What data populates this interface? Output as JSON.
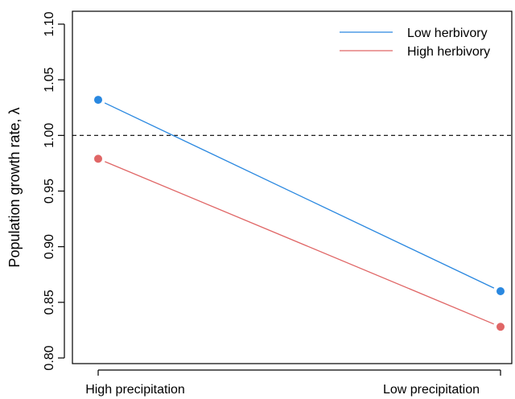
{
  "chart_data": {
    "type": "line",
    "categories": [
      "High precipitation",
      "Low precipitation"
    ],
    "ylabel": "Population growth rate, λ",
    "xlabel": "",
    "ylim": [
      0.79,
      1.1
    ],
    "yticks": [
      0.8,
      0.85,
      0.9,
      0.95,
      1.0,
      1.05,
      1.1
    ],
    "ytick_labels": [
      "0.80",
      "0.85",
      "0.90",
      "0.95",
      "1.00",
      "1.05",
      "1.10"
    ],
    "reference_line": {
      "y": 1.0,
      "style": "dashed"
    },
    "grid": false,
    "legend_position": "top-right",
    "series": [
      {
        "name": "Low herbivory",
        "color": "#2a88e0",
        "values": [
          1.032,
          0.86
        ]
      },
      {
        "name": "High herbivory",
        "color": "#e06666",
        "values": [
          0.979,
          0.828
        ]
      }
    ]
  }
}
